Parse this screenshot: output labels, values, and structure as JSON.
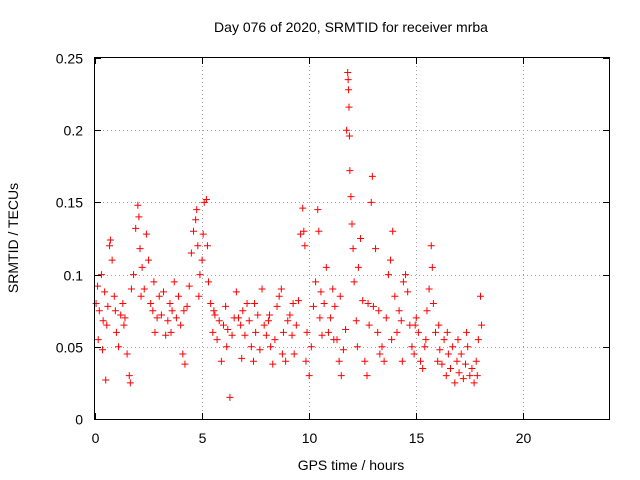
{
  "chart_data": {
    "type": "scatter",
    "title": "Day 076 of 2020, SRMTID for receiver mrba",
    "xlabel": "GPS time / hours",
    "ylabel": "SRMTID / TECUs",
    "xlim": [
      0,
      24
    ],
    "ylim": [
      0,
      0.25
    ],
    "xticks": [
      0,
      5,
      10,
      15,
      20
    ],
    "yticks": [
      0,
      0.05,
      0.1,
      0.15,
      0.2,
      0.25
    ],
    "xtick_labels": [
      "0",
      "5",
      "10",
      "15",
      "20"
    ],
    "ytick_labels": [
      "0",
      "0.05",
      "0.1",
      "0.15",
      "0.2",
      "0.25"
    ],
    "grid": true,
    "marker": "+",
    "color": "#ff0000",
    "series": [
      {
        "name": "SRMTID",
        "points": [
          [
            0.05,
            0.08
          ],
          [
            0.12,
            0.092
          ],
          [
            0.2,
            0.075
          ],
          [
            0.3,
            0.1
          ],
          [
            0.38,
            0.068
          ],
          [
            0.45,
            0.088
          ],
          [
            0.5,
            0.027
          ],
          [
            0.55,
            0.065
          ],
          [
            0.6,
            0.078
          ],
          [
            0.68,
            0.12
          ],
          [
            0.72,
            0.124
          ],
          [
            0.8,
            0.11
          ],
          [
            0.9,
            0.085
          ],
          [
            1.0,
            0.06
          ],
          [
            1.1,
            0.05
          ],
          [
            1.2,
            0.072
          ],
          [
            1.3,
            0.08
          ],
          [
            1.4,
            0.07
          ],
          [
            1.5,
            0.045
          ],
          [
            1.6,
            0.03
          ],
          [
            1.65,
            0.025
          ],
          [
            1.7,
            0.09
          ],
          [
            1.8,
            0.1
          ],
          [
            1.9,
            0.132
          ],
          [
            2.0,
            0.148
          ],
          [
            2.05,
            0.14
          ],
          [
            2.1,
            0.118
          ],
          [
            2.2,
            0.105
          ],
          [
            2.3,
            0.09
          ],
          [
            2.4,
            0.128
          ],
          [
            2.5,
            0.11
          ],
          [
            2.6,
            0.08
          ],
          [
            2.7,
            0.075
          ],
          [
            2.8,
            0.06
          ],
          [
            2.9,
            0.07
          ],
          [
            3.0,
            0.085
          ],
          [
            3.1,
            0.072
          ],
          [
            3.2,
            0.088
          ],
          [
            3.3,
            0.058
          ],
          [
            3.4,
            0.068
          ],
          [
            3.5,
            0.08
          ],
          [
            3.6,
            0.075
          ],
          [
            3.7,
            0.095
          ],
          [
            3.8,
            0.07
          ],
          [
            3.9,
            0.085
          ],
          [
            4.0,
            0.065
          ],
          [
            4.1,
            0.045
          ],
          [
            4.2,
            0.038
          ],
          [
            4.3,
            0.078
          ],
          [
            4.4,
            0.092
          ],
          [
            4.5,
            0.115
          ],
          [
            4.6,
            0.13
          ],
          [
            4.7,
            0.138
          ],
          [
            4.75,
            0.145
          ],
          [
            4.8,
            0.12
          ],
          [
            4.9,
            0.1
          ],
          [
            5.0,
            0.11
          ],
          [
            5.05,
            0.128
          ],
          [
            5.1,
            0.15
          ],
          [
            5.2,
            0.152
          ],
          [
            5.25,
            0.12
          ],
          [
            5.3,
            0.095
          ],
          [
            5.4,
            0.08
          ],
          [
            5.5,
            0.06
          ],
          [
            5.6,
            0.072
          ],
          [
            5.7,
            0.055
          ],
          [
            5.8,
            0.068
          ],
          [
            5.9,
            0.04
          ],
          [
            6.0,
            0.065
          ],
          [
            6.1,
            0.078
          ],
          [
            6.2,
            0.062
          ],
          [
            6.3,
            0.015
          ],
          [
            6.4,
            0.058
          ],
          [
            6.5,
            0.07
          ],
          [
            6.6,
            0.088
          ],
          [
            6.7,
            0.07
          ],
          [
            6.8,
            0.065
          ],
          [
            6.9,
            0.075
          ],
          [
            7.0,
            0.058
          ],
          [
            7.1,
            0.08
          ],
          [
            7.2,
            0.068
          ],
          [
            7.3,
            0.05
          ],
          [
            7.4,
            0.04
          ],
          [
            7.5,
            0.06
          ],
          [
            7.6,
            0.072
          ],
          [
            7.7,
            0.048
          ],
          [
            7.8,
            0.09
          ],
          [
            7.9,
            0.065
          ],
          [
            8.0,
            0.058
          ],
          [
            8.1,
            0.068
          ],
          [
            8.2,
            0.05
          ],
          [
            8.3,
            0.038
          ],
          [
            8.4,
            0.055
          ],
          [
            8.5,
            0.078
          ],
          [
            8.6,
            0.085
          ],
          [
            8.7,
            0.09
          ],
          [
            8.8,
            0.06
          ],
          [
            8.9,
            0.04
          ],
          [
            9.0,
            0.068
          ],
          [
            9.1,
            0.072
          ],
          [
            9.2,
            0.058
          ],
          [
            9.3,
            0.045
          ],
          [
            9.4,
            0.065
          ],
          [
            9.5,
            0.082
          ],
          [
            9.6,
            0.128
          ],
          [
            9.7,
            0.146
          ],
          [
            9.75,
            0.13
          ],
          [
            9.8,
            0.12
          ],
          [
            9.9,
            0.06
          ],
          [
            10.0,
            0.03
          ],
          [
            10.1,
            0.05
          ],
          [
            10.2,
            0.078
          ],
          [
            10.3,
            0.095
          ],
          [
            10.4,
            0.145
          ],
          [
            10.45,
            0.13
          ],
          [
            10.5,
            0.07
          ],
          [
            10.6,
            0.058
          ],
          [
            10.7,
            0.08
          ],
          [
            10.8,
            0.105
          ],
          [
            10.9,
            0.06
          ],
          [
            11.0,
            0.07
          ],
          [
            11.1,
            0.09
          ],
          [
            11.2,
            0.078
          ],
          [
            11.3,
            0.055
          ],
          [
            11.4,
            0.04
          ],
          [
            11.5,
            0.03
          ],
          [
            11.6,
            0.048
          ],
          [
            11.7,
            0.062
          ],
          [
            11.75,
            0.2
          ],
          [
            11.8,
            0.24
          ],
          [
            11.82,
            0.235
          ],
          [
            11.84,
            0.228
          ],
          [
            11.86,
            0.216
          ],
          [
            11.88,
            0.196
          ],
          [
            11.9,
            0.172
          ],
          [
            11.95,
            0.154
          ],
          [
            12.0,
            0.135
          ],
          [
            12.05,
            0.118
          ],
          [
            12.1,
            0.095
          ],
          [
            12.2,
            0.068
          ],
          [
            12.3,
            0.105
          ],
          [
            12.4,
            0.125
          ],
          [
            12.5,
            0.082
          ],
          [
            12.6,
            0.04
          ],
          [
            12.7,
            0.03
          ],
          [
            12.8,
            0.065
          ],
          [
            12.9,
            0.15
          ],
          [
            12.95,
            0.168
          ],
          [
            13.0,
            0.078
          ],
          [
            13.1,
            0.118
          ],
          [
            13.2,
            0.06
          ],
          [
            13.3,
            0.045
          ],
          [
            13.4,
            0.05
          ],
          [
            13.5,
            0.04
          ],
          [
            13.6,
            0.07
          ],
          [
            13.7,
            0.1
          ],
          [
            13.8,
            0.11
          ],
          [
            13.9,
            0.13
          ],
          [
            14.0,
            0.085
          ],
          [
            14.1,
            0.06
          ],
          [
            14.2,
            0.075
          ],
          [
            14.3,
            0.068
          ],
          [
            14.4,
            0.095
          ],
          [
            14.5,
            0.1
          ],
          [
            14.6,
            0.088
          ],
          [
            14.7,
            0.065
          ],
          [
            14.8,
            0.05
          ],
          [
            14.9,
            0.045
          ],
          [
            15.0,
            0.07
          ],
          [
            15.1,
            0.06
          ],
          [
            15.2,
            0.04
          ],
          [
            15.3,
            0.035
          ],
          [
            15.4,
            0.05
          ],
          [
            15.5,
            0.075
          ],
          [
            15.6,
            0.09
          ],
          [
            15.7,
            0.12
          ],
          [
            15.75,
            0.105
          ],
          [
            15.8,
            0.08
          ],
          [
            15.9,
            0.06
          ],
          [
            16.0,
            0.04
          ],
          [
            16.1,
            0.048
          ],
          [
            16.2,
            0.038
          ],
          [
            16.3,
            0.055
          ],
          [
            16.4,
            0.03
          ],
          [
            16.5,
            0.045
          ],
          [
            16.6,
            0.035
          ],
          [
            16.7,
            0.05
          ],
          [
            16.8,
            0.025
          ],
          [
            16.9,
            0.04
          ],
          [
            17.0,
            0.032
          ],
          [
            17.1,
            0.045
          ],
          [
            17.2,
            0.028
          ],
          [
            17.3,
            0.038
          ],
          [
            17.4,
            0.05
          ],
          [
            17.5,
            0.03
          ],
          [
            17.6,
            0.035
          ],
          [
            17.7,
            0.025
          ],
          [
            17.8,
            0.04
          ],
          [
            17.9,
            0.055
          ],
          [
            18.0,
            0.085
          ],
          [
            18.05,
            0.065
          ],
          [
            0.15,
            0.055
          ],
          [
            0.35,
            0.048
          ],
          [
            0.95,
            0.075
          ],
          [
            1.35,
            0.065
          ],
          [
            2.15,
            0.085
          ],
          [
            2.75,
            0.095
          ],
          [
            3.55,
            0.06
          ],
          [
            4.15,
            0.075
          ],
          [
            4.85,
            0.085
          ],
          [
            5.55,
            0.075
          ],
          [
            6.15,
            0.05
          ],
          [
            6.85,
            0.042
          ],
          [
            7.45,
            0.08
          ],
          [
            8.15,
            0.072
          ],
          [
            8.75,
            0.045
          ],
          [
            9.25,
            0.08
          ],
          [
            9.85,
            0.04
          ],
          [
            10.55,
            0.088
          ],
          [
            11.15,
            0.055
          ],
          [
            11.45,
            0.085
          ],
          [
            12.25,
            0.05
          ],
          [
            12.75,
            0.08
          ],
          [
            13.25,
            0.075
          ],
          [
            13.85,
            0.055
          ],
          [
            14.35,
            0.04
          ],
          [
            14.95,
            0.065
          ],
          [
            15.45,
            0.055
          ],
          [
            16.05,
            0.065
          ],
          [
            16.45,
            0.06
          ],
          [
            16.95,
            0.055
          ],
          [
            17.35,
            0.06
          ],
          [
            17.85,
            0.03
          ]
        ]
      }
    ]
  }
}
